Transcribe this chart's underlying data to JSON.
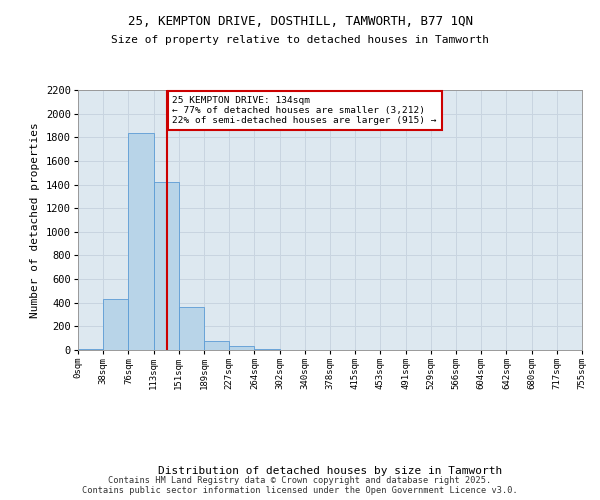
{
  "title_line1": "25, KEMPTON DRIVE, DOSTHILL, TAMWORTH, B77 1QN",
  "title_line2": "Size of property relative to detached houses in Tamworth",
  "xlabel": "Distribution of detached houses by size in Tamworth",
  "ylabel": "Number of detached properties",
  "bin_labels": [
    "0sqm",
    "38sqm",
    "76sqm",
    "113sqm",
    "151sqm",
    "189sqm",
    "227sqm",
    "264sqm",
    "302sqm",
    "340sqm",
    "378sqm",
    "415sqm",
    "453sqm",
    "491sqm",
    "529sqm",
    "566sqm",
    "604sqm",
    "642sqm",
    "680sqm",
    "717sqm",
    "755sqm"
  ],
  "bar_values": [
    10,
    430,
    1840,
    1420,
    360,
    75,
    30,
    10,
    0,
    0,
    0,
    0,
    0,
    0,
    0,
    0,
    0,
    0,
    0,
    0
  ],
  "bar_color": "#b8d4e8",
  "bar_edge_color": "#5b9bd5",
  "grid_color": "#c8d4e0",
  "background_color": "#dde8f0",
  "vline_x": 3,
  "vline_color": "#cc0000",
  "annotation_text": "25 KEMPTON DRIVE: 134sqm\n← 77% of detached houses are smaller (3,212)\n22% of semi-detached houses are larger (915) →",
  "annotation_box_color": "#ffffff",
  "annotation_box_edge": "#cc0000",
  "ylim": [
    0,
    2200
  ],
  "yticks": [
    0,
    200,
    400,
    600,
    800,
    1000,
    1200,
    1400,
    1600,
    1800,
    2000,
    2200
  ],
  "footer_line1": "Contains HM Land Registry data © Crown copyright and database right 2025.",
  "footer_line2": "Contains public sector information licensed under the Open Government Licence v3.0.",
  "bin_width": 38,
  "n_bars": 20,
  "property_size_sqm": 134
}
